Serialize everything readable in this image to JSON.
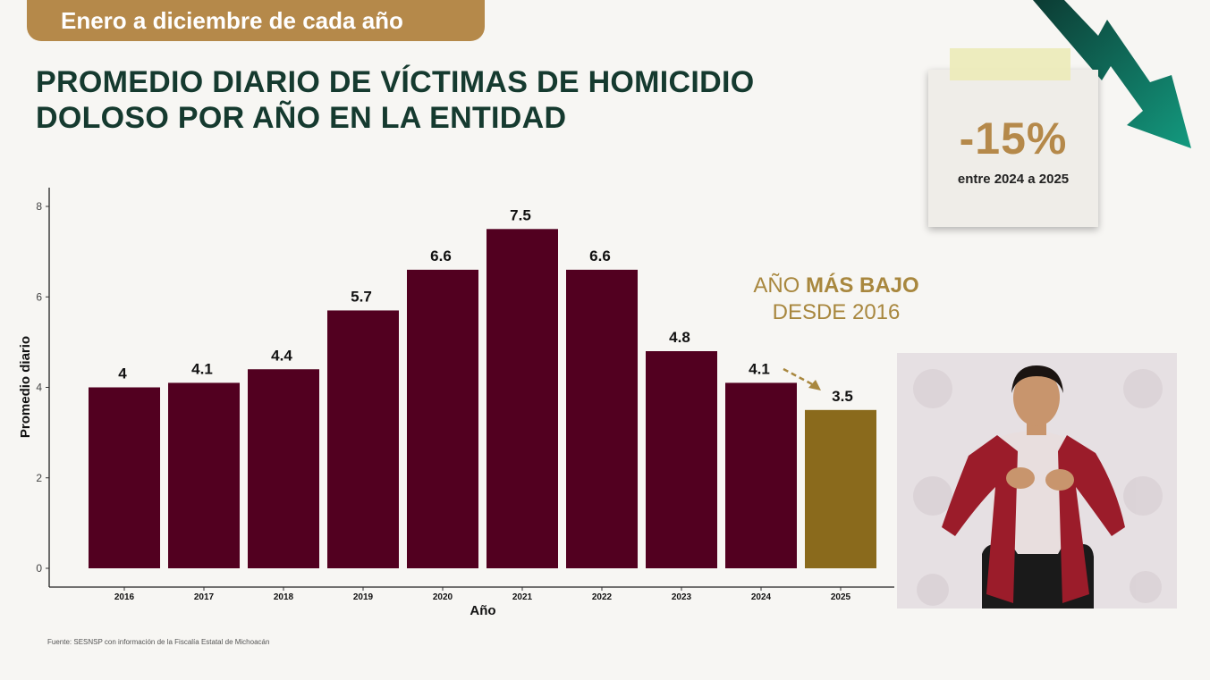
{
  "header": {
    "period": "Enero a diciembre de cada año",
    "title_line1": "PROMEDIO DIARIO DE VÍCTIMAS DE HOMICIDIO",
    "title_line2": "DOLOSO POR AÑO EN LA ENTIDAD"
  },
  "note": {
    "percent": "-15%",
    "subtitle": "entre 2024 a 2025"
  },
  "highlight": {
    "prefix": "AÑO ",
    "emphasis": "MÁS BAJO",
    "line2": "DESDE 2016"
  },
  "source": "Fuente: SESNSP con información de la Fiscalía Estatal de Michoacán",
  "colors": {
    "bar": "#520020",
    "bar_highlight": "#8a6a1c",
    "title": "#153a2f",
    "accent": "#b5894a",
    "arrow": "#0f5c4e"
  },
  "chart_data": {
    "type": "bar",
    "title": "PROMEDIO DIARIO DE VÍCTIMAS DE HOMICIDIO DOLOSO POR AÑO EN LA ENTIDAD",
    "xlabel": "Año",
    "ylabel": "Promedio diario",
    "categories": [
      "2016",
      "2017",
      "2018",
      "2019",
      "2020",
      "2021",
      "2022",
      "2023",
      "2024",
      "2025"
    ],
    "values": [
      4.0,
      4.1,
      4.4,
      5.7,
      6.6,
      7.5,
      6.6,
      4.8,
      4.1,
      3.5
    ],
    "data_labels": [
      "4",
      "4.1",
      "4.4",
      "5.7",
      "6.6",
      "7.5",
      "6.6",
      "4.8",
      "4.1",
      "3.5"
    ],
    "highlight_category": "2025",
    "yticks": [
      0,
      2,
      4,
      6,
      8
    ],
    "ylim": [
      0,
      8
    ],
    "grid": false
  }
}
